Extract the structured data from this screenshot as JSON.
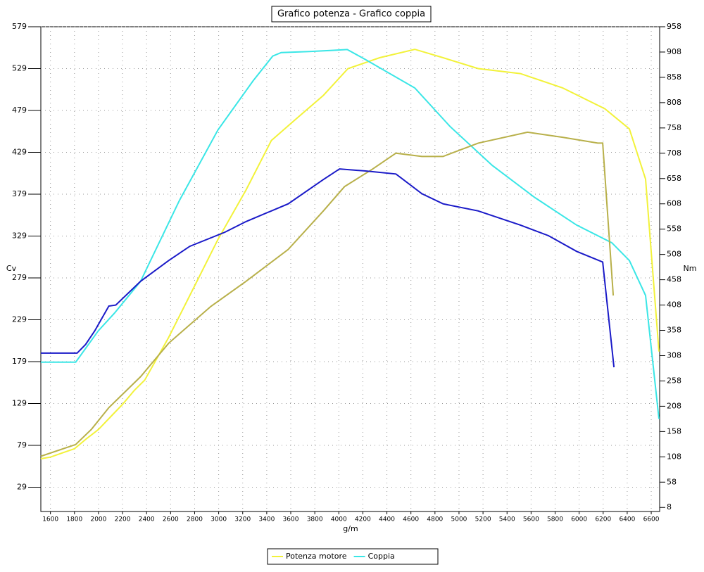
{
  "chart_data": {
    "type": "line",
    "title": "Grafico potenza - Grafico coppia",
    "xlabel": "g/m",
    "ylabel": "Cv",
    "y2label": "Nm",
    "xlim": [
      1520,
      6670
    ],
    "ylim": [
      0,
      579
    ],
    "y2lim": [
      0,
      958
    ],
    "xticks": [
      1600,
      1800,
      2000,
      2200,
      2400,
      2600,
      2800,
      3000,
      3200,
      3400,
      3600,
      3800,
      4000,
      4200,
      4400,
      4600,
      4800,
      5000,
      5200,
      5400,
      5600,
      5800,
      6000,
      6200,
      6400,
      6600
    ],
    "yticks": [
      29,
      79,
      129,
      179,
      229,
      279,
      329,
      379,
      429,
      479,
      529,
      579
    ],
    "y2ticks": [
      8,
      58,
      108,
      158,
      208,
      258,
      308,
      358,
      408,
      458,
      508,
      558,
      608,
      658,
      708,
      758,
      808,
      858,
      908,
      958
    ],
    "grid": true,
    "legend": "bottom",
    "series": [
      {
        "name": "Potenza motore",
        "color": "#f2f23a",
        "axis": "y",
        "x": [
          1520,
          1600,
          1700,
          1800,
          1900,
          2000,
          2100,
          2200,
          2300,
          2385,
          2584,
          2760,
          2994,
          3228,
          3438,
          3637,
          3871,
          4076,
          4340,
          4632,
          4867,
          5160,
          5511,
          5862,
          6214,
          6418,
          6553,
          6664
        ],
        "values": [
          63,
          65,
          70,
          75,
          87,
          98,
          113,
          128,
          145,
          157,
          208,
          258,
          325,
          384,
          443,
          468,
          497,
          529,
          542,
          552,
          542,
          529,
          523,
          506,
          481,
          457,
          397,
          191
        ]
      },
      {
        "name": "Coppia",
        "color": "#3ae6e6",
        "axis": "y2",
        "x": [
          1520,
          1810,
          1998,
          2133,
          2350,
          2672,
          2994,
          3286,
          3450,
          3520,
          3754,
          3930,
          4070,
          4223,
          4632,
          4925,
          5277,
          5628,
          5979,
          6272,
          6418,
          6553,
          6664
        ],
        "values": [
          295,
          295,
          357,
          392,
          455,
          614,
          754,
          851,
          900,
          907,
          909,
          911,
          913,
          893,
          837,
          761,
          684,
          621,
          566,
          531,
          496,
          427,
          183
        ]
      },
      {
        "color": "#b8b04a",
        "axis": "y",
        "x": [
          1520,
          1810,
          1940,
          2086,
          2350,
          2584,
          2935,
          3228,
          3579,
          3871,
          4047,
          4281,
          4475,
          4691,
          4867,
          5160,
          5570,
          5862,
          6155,
          6196,
          6284
        ],
        "values": [
          66,
          80,
          98,
          124,
          161,
          201,
          245,
          275,
          313,
          359,
          388,
          409,
          428,
          424,
          424,
          440,
          453,
          447,
          440,
          440,
          258
        ]
      },
      {
        "color": "#1a1ac8",
        "axis": "y2",
        "x": [
          1520,
          1822,
          1892,
          1969,
          2086,
          2144,
          2350,
          2584,
          2760,
          3052,
          3228,
          3579,
          3871,
          4006,
          4223,
          4475,
          4691,
          4867,
          5160,
          5511,
          5745,
          5979,
          6196,
          6290
        ],
        "values": [
          313,
          313,
          330,
          357,
          406,
          408,
          455,
          496,
          524,
          552,
          573,
          608,
          656,
          677,
          673,
          667,
          628,
          608,
          594,
          566,
          545,
          514,
          493,
          285
        ]
      }
    ]
  }
}
